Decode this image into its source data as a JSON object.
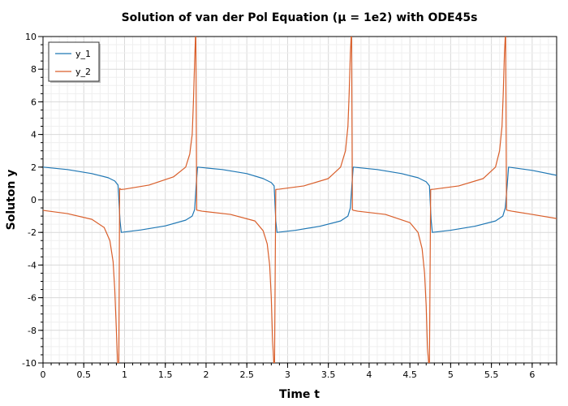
{
  "chart_data": {
    "type": "line",
    "title": "Solution of van der Pol Equation (μ = 1e2) with ODE45s",
    "xlabel": "Time t",
    "ylabel": "Soluton y",
    "xlim": [
      0,
      6.3
    ],
    "ylim": [
      -10,
      10
    ],
    "x_ticks": [
      0,
      0.5,
      1,
      1.5,
      2,
      2.5,
      3,
      3.5,
      4,
      4.5,
      5,
      5.5,
      6
    ],
    "x_tick_labels": [
      "0",
      "0.5",
      "1",
      "1.5",
      "2",
      "2.5",
      "3",
      "3.5",
      "4",
      "4.5",
      "5",
      "5.5",
      "6"
    ],
    "y_ticks": [
      -10,
      -8,
      -6,
      -4,
      -2,
      0,
      2,
      4,
      6,
      8,
      10
    ],
    "y_tick_labels": [
      "-10",
      "-8",
      "-6",
      "-4",
      "-2",
      "0",
      "2",
      "4",
      "6",
      "8",
      "10"
    ],
    "grid": true,
    "legend_position": "top-left",
    "period": 1.907,
    "series": [
      {
        "name": "y_1",
        "color": "#1f77b4",
        "x": [
          0,
          0.3,
          0.6,
          0.8,
          0.88,
          0.92,
          0.945,
          0.96,
          1.2,
          1.5,
          1.75,
          1.83,
          1.86,
          1.88,
          1.895,
          2.2,
          2.5,
          2.7,
          2.8,
          2.835,
          2.855,
          2.87,
          3.1,
          3.4,
          3.65,
          3.74,
          3.77,
          3.79,
          3.805,
          4.1,
          4.4,
          4.6,
          4.7,
          4.74,
          4.76,
          4.775,
          5.0,
          5.3,
          5.55,
          5.64,
          5.67,
          5.695,
          5.71,
          6.0,
          6.3
        ],
        "y": [
          2.0,
          1.85,
          1.6,
          1.35,
          1.15,
          0.9,
          -1.3,
          -2.0,
          -1.85,
          -1.6,
          -1.25,
          -1.0,
          -0.6,
          1.0,
          2.0,
          1.85,
          1.6,
          1.3,
          1.05,
          0.85,
          -1.3,
          -2.0,
          -1.87,
          -1.62,
          -1.3,
          -1.0,
          -0.5,
          1.0,
          2.0,
          1.85,
          1.6,
          1.35,
          1.1,
          0.85,
          -1.2,
          -2.0,
          -1.87,
          -1.62,
          -1.3,
          -1.0,
          -0.5,
          1.0,
          2.0,
          1.8,
          1.5
        ]
      },
      {
        "name": "y_2",
        "color": "#d95f2b",
        "x": [
          0,
          0.3,
          0.6,
          0.75,
          0.82,
          0.86,
          0.88,
          0.9,
          0.915,
          0.93,
          0.94,
          0.955,
          1.0,
          1.3,
          1.6,
          1.75,
          1.8,
          1.83,
          1.845,
          1.86,
          1.87,
          1.875,
          1.885,
          1.9,
          1.95,
          2.3,
          2.6,
          2.7,
          2.75,
          2.78,
          2.8,
          2.815,
          2.83,
          2.84,
          2.855,
          2.9,
          3.2,
          3.5,
          3.65,
          3.71,
          3.74,
          3.755,
          3.77,
          3.78,
          3.785,
          3.795,
          3.81,
          3.86,
          4.2,
          4.5,
          4.6,
          4.65,
          4.68,
          4.7,
          4.715,
          4.73,
          4.74,
          4.755,
          4.8,
          5.1,
          5.4,
          5.55,
          5.6,
          5.63,
          5.645,
          5.66,
          5.67,
          5.675,
          5.685,
          5.7,
          5.75,
          6.0,
          6.3
        ],
        "y": [
          -0.65,
          -0.85,
          -1.2,
          -1.7,
          -2.5,
          -3.8,
          -5.5,
          -8.0,
          -10,
          -10,
          0.7,
          0.63,
          0.65,
          0.9,
          1.4,
          2.0,
          2.8,
          4.0,
          6.0,
          8.5,
          10,
          10,
          -0.63,
          -0.65,
          -0.7,
          -0.9,
          -1.3,
          -1.9,
          -2.7,
          -4.0,
          -6.0,
          -8.5,
          -10,
          -10,
          0.63,
          0.65,
          0.85,
          1.3,
          2.0,
          3.0,
          4.5,
          6.5,
          9.0,
          10,
          10,
          -0.62,
          -0.65,
          -0.7,
          -0.9,
          -1.4,
          -2.0,
          -3.0,
          -4.5,
          -6.5,
          -9.0,
          -10,
          -10,
          0.63,
          0.65,
          0.85,
          1.3,
          2.0,
          3.0,
          4.5,
          6.5,
          9.0,
          10,
          10,
          -0.62,
          -0.65,
          -0.7,
          -0.9,
          -1.15
        ]
      }
    ]
  }
}
